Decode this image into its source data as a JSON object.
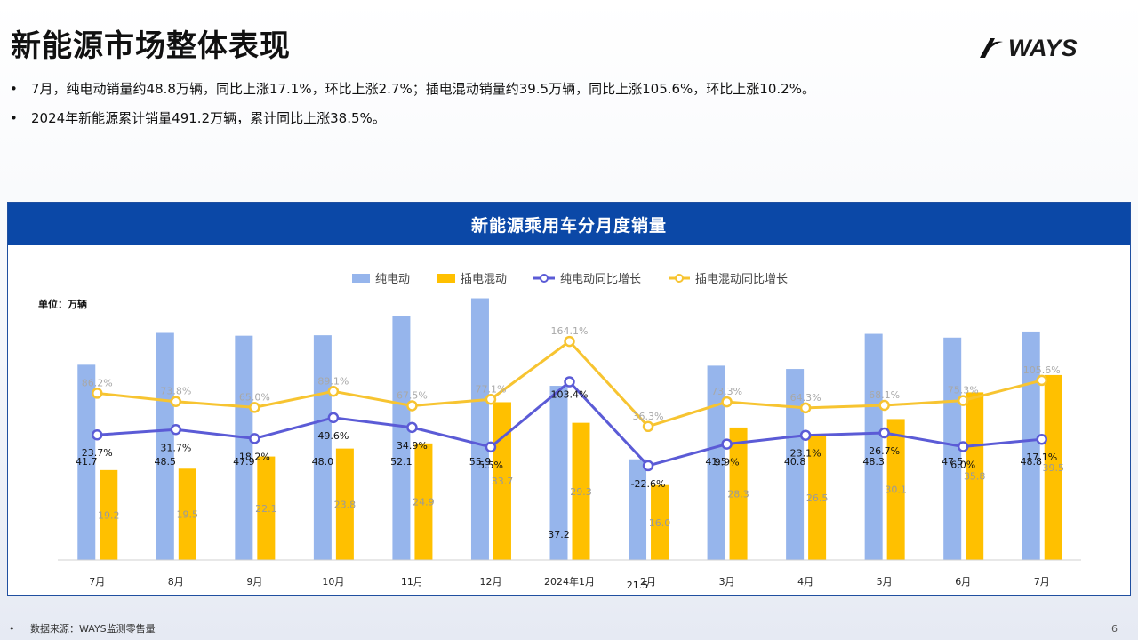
{
  "page": {
    "title": "新能源市场整体表现",
    "logo_text": "WAYS",
    "bullets": [
      "7月，纯电动销量约48.8万辆，同比上涨17.1%，环比上涨2.7%；插电混动销量约39.5万辆，同比上涨105.6%，环比上涨10.2%。",
      "2024年新能源累计销量491.2万辆，累计同比上涨38.5%。"
    ],
    "footnote": "数据来源：WAYS监测零售量",
    "page_number": "6"
  },
  "chart_data": {
    "type": "bar",
    "title": "新能源乘用车分月度销量",
    "unit_label": "单位：万辆",
    "categories": [
      "7月",
      "8月",
      "9月",
      "10月",
      "11月",
      "12月",
      "2024年1月",
      "2月",
      "3月",
      "4月",
      "5月",
      "6月",
      "7月"
    ],
    "series": [
      {
        "name": "纯电动",
        "kind": "bar",
        "color": "#96b5ec",
        "values": [
          41.7,
          48.5,
          47.9,
          48.0,
          52.1,
          55.9,
          37.2,
          21.5,
          41.5,
          40.8,
          48.3,
          47.5,
          48.8
        ]
      },
      {
        "name": "插电混动",
        "kind": "bar",
        "color": "#ffc000",
        "values": [
          19.2,
          19.5,
          22.1,
          23.8,
          24.9,
          33.7,
          29.3,
          16.0,
          28.3,
          26.5,
          30.1,
          35.8,
          39.5
        ]
      },
      {
        "name": "纯电动同比增长",
        "kind": "line",
        "color": "#5b5bd6",
        "values": [
          23.7,
          31.7,
          18.2,
          49.6,
          34.9,
          5.5,
          103.4,
          -22.6,
          9.9,
          23.1,
          26.7,
          6.0,
          17.1
        ],
        "labels": [
          "23.7%",
          "31.7%",
          "18.2%",
          "49.6%",
          "34.9%",
          "5.5%",
          "103.4%",
          "-22.6%",
          "9.9%",
          "23.1%",
          "26.7%",
          "6.0%",
          "17.1%"
        ]
      },
      {
        "name": "插电混动同比增长",
        "kind": "line",
        "color": "#f7c431",
        "values": [
          86.2,
          73.8,
          65.0,
          89.1,
          67.5,
          77.1,
          164.1,
          36.3,
          73.3,
          64.3,
          68.1,
          75.3,
          105.6
        ],
        "labels": [
          "86.2%",
          "73.8%",
          "65.0%",
          "89.1%",
          "67.5%",
          "77.1%",
          "164.1%",
          "36.3%",
          "73.3%",
          "64.3%",
          "68.1%",
          "75.3%",
          "105.6%"
        ]
      }
    ],
    "legend_position": "top-center",
    "grid": false
  }
}
